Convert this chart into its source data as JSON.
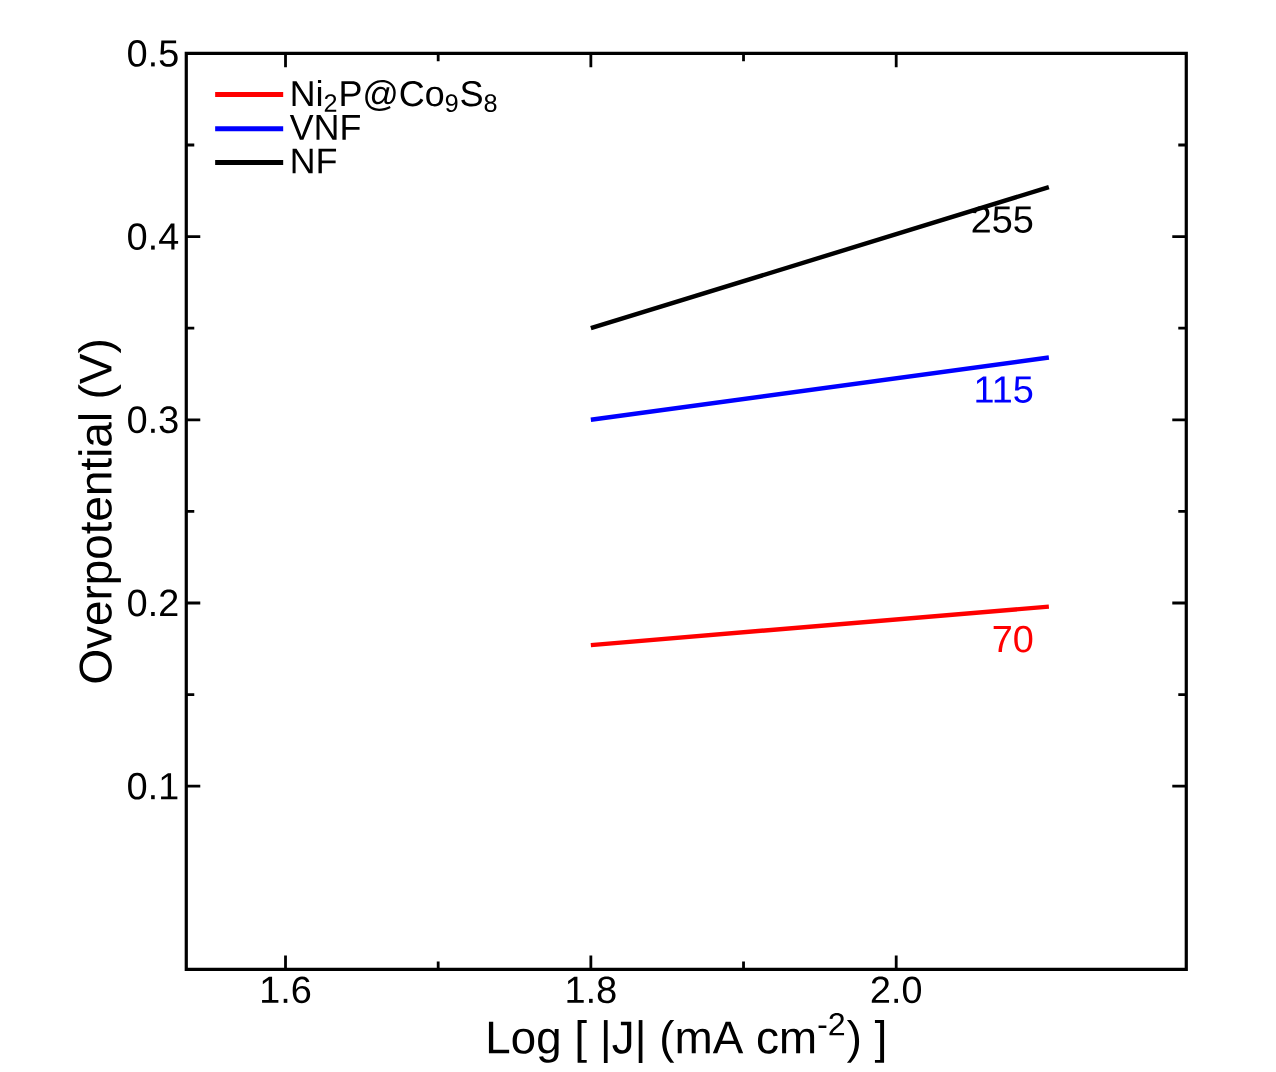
{
  "chart_data": {
    "type": "line",
    "xlabel": "Log [ |J| (mA cm$^{-2}$) ]",
    "ylabel": "Overpotential (V)",
    "xlim": [
      1.535,
      2.19
    ],
    "ylim": [
      0.0,
      0.5
    ],
    "xticks": [
      1.6,
      1.8,
      {
        "value": 2.0,
        "label": "2.0"
      }
    ],
    "x": [
      1.8,
      2.1
    ],
    "yticks": [
      0.1,
      0.2,
      0.3,
      0.4,
      0.5
    ],
    "legend": "top left",
    "grid": false,
    "marker": "none",
    "line_style": "solid",
    "series": [
      {
        "name": "Ni$_{2}$P@Co$_{9}$S$_{8}$",
        "color": "#ff0000",
        "values": [
          0.177,
          0.198
        ]
      },
      {
        "name": "VNF",
        "color": "#0000ff",
        "values": [
          0.3,
          0.334
        ]
      },
      {
        "name": "NF",
        "color": "#000000",
        "values": [
          0.35,
          0.427
        ]
      }
    ],
    "annotations": [
      "70",
      "115",
      "255"
    ]
  }
}
